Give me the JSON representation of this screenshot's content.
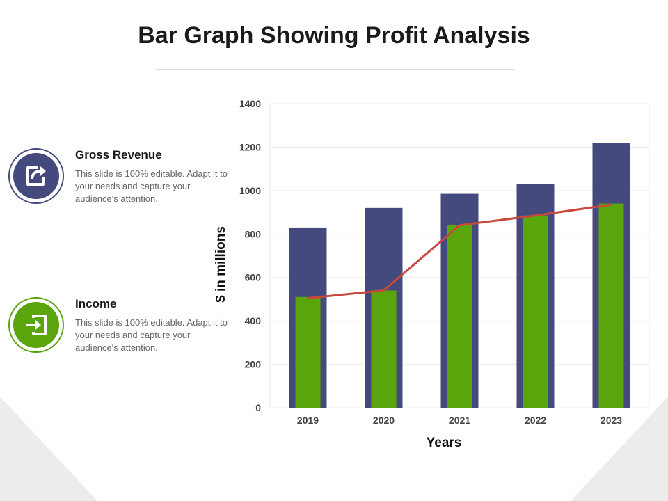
{
  "title": "Bar Graph Showing Profit Analysis",
  "legend": [
    {
      "title": "Gross Revenue",
      "description": "This slide is 100% editable. Adapt it to your needs and capture your audience's attention.",
      "icon": "share-icon",
      "color": "#454a7e"
    },
    {
      "title": "Income",
      "description": "This slide is 100% editable. Adapt it to your needs and capture your audience's attention.",
      "icon": "enter-icon",
      "color": "#5aa50c"
    }
  ],
  "chart_data": {
    "type": "bar",
    "categories": [
      "2019",
      "2020",
      "2021",
      "2022",
      "2023"
    ],
    "series": [
      {
        "name": "Gross Revenue",
        "values": [
          830,
          920,
          985,
          1030,
          1220
        ],
        "color": "#454a7e"
      },
      {
        "name": "Income",
        "values": [
          510,
          540,
          840,
          885,
          940
        ],
        "color": "#5aa50c"
      }
    ],
    "line": {
      "values": [
        505,
        540,
        840,
        885,
        935
      ],
      "color": "#c9473b"
    },
    "xlabel": "Years",
    "ylabel": "$ in millions",
    "ylim": [
      0,
      1400
    ],
    "yticks": [
      0,
      200,
      400,
      600,
      800,
      1000,
      1200,
      1400
    ],
    "grid": true
  }
}
